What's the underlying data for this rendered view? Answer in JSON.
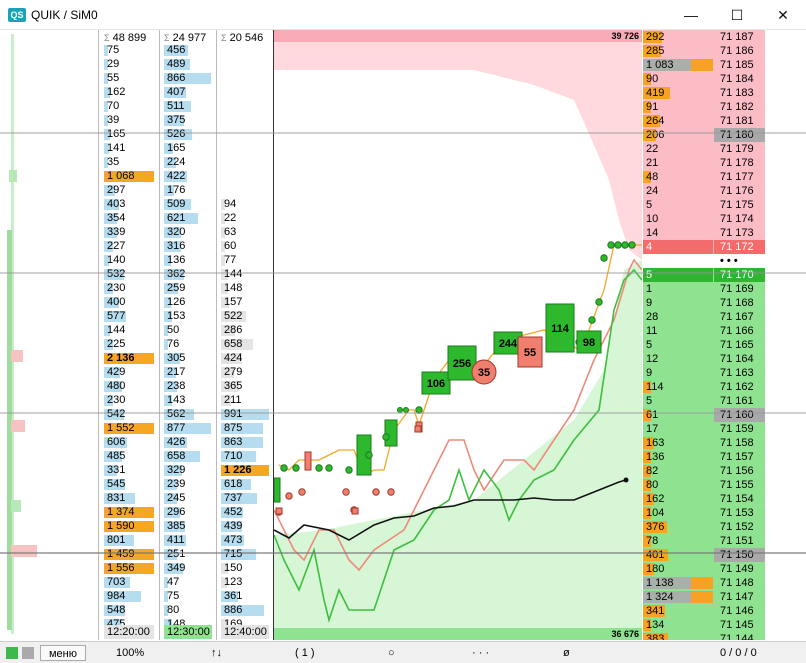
{
  "window": {
    "logo": "QS",
    "title": "QUIK / SiM0",
    "minimize_glyph": "—",
    "maximize_glyph": "☐",
    "close_glyph": "✕"
  },
  "colors": {
    "ask_bg": "#fbbcc6",
    "bid_bg": "#8fe28f",
    "ask_vol": "#f7a222",
    "bid_vol": "#f7a222",
    "big_vol": "#a9b0a9",
    "buy": "#2db82d",
    "sell": "#f07f6f",
    "lightblue": "#b6dcef",
    "orange": "#f5a623",
    "gray_cell": "#e4e4e4"
  },
  "columns": [
    {
      "name": "trades-column-1",
      "header": "48 899",
      "time": "12:20:00",
      "footer_bg": "#e4e4e4",
      "cells": [
        {
          "v": "75",
          "w": 0.03,
          "c": "#b6dcef"
        },
        {
          "v": "29",
          "w": 0.02,
          "c": "#b6dcef"
        },
        {
          "v": "55",
          "w": 0.04,
          "c": "#b6dcef"
        },
        {
          "v": "162",
          "w": 0.12,
          "c": "#b6dcef"
        },
        {
          "v": "70",
          "w": 0.05,
          "c": "#b6dcef"
        },
        {
          "v": "39",
          "w": 0.03,
          "c": "#b6dcef"
        },
        {
          "v": "165",
          "w": 0.12,
          "c": "#b6dcef"
        },
        {
          "v": "141",
          "w": 0.1,
          "c": "#b6dcef"
        },
        {
          "v": "35",
          "w": 0.03,
          "c": "#b6dcef"
        },
        {
          "v": "1 068",
          "w": 1.0,
          "c": "#b6dcef",
          "bold": false,
          "orange": true
        },
        {
          "v": "297",
          "w": 0.22,
          "c": "#b6dcef"
        },
        {
          "v": "403",
          "w": 0.3,
          "c": "#b6dcef"
        },
        {
          "v": "354",
          "w": 0.26,
          "c": "#b6dcef"
        },
        {
          "v": "339",
          "w": 0.25,
          "c": "#b6dcef"
        },
        {
          "v": "227",
          "w": 0.17,
          "c": "#b6dcef"
        },
        {
          "v": "140",
          "w": 0.1,
          "c": "#b6dcef"
        },
        {
          "v": "532",
          "w": 0.4,
          "c": "#b6dcef"
        },
        {
          "v": "230",
          "w": 0.17,
          "c": "#b6dcef"
        },
        {
          "v": "400",
          "w": 0.3,
          "c": "#b6dcef"
        },
        {
          "v": "577",
          "w": 0.43,
          "c": "#b6dcef"
        },
        {
          "v": "144",
          "w": 0.11,
          "c": "#b6dcef"
        },
        {
          "v": "225",
          "w": 0.17,
          "c": "#b6dcef"
        },
        {
          "v": "2 136",
          "w": 1.0,
          "c": "#f5a623",
          "bold": true
        },
        {
          "v": "429",
          "w": 0.32,
          "c": "#b6dcef"
        },
        {
          "v": "480",
          "w": 0.36,
          "c": "#b6dcef"
        },
        {
          "v": "230",
          "w": 0.17,
          "c": "#b6dcef"
        },
        {
          "v": "542",
          "w": 0.4,
          "c": "#b6dcef"
        },
        {
          "v": "1 552",
          "w": 1.0,
          "c": "#f5a623"
        },
        {
          "v": "606",
          "w": 0.45,
          "c": "#b6dcef"
        },
        {
          "v": "485",
          "w": 0.36,
          "c": "#b6dcef"
        },
        {
          "v": "331",
          "w": 0.25,
          "c": "#b6dcef"
        },
        {
          "v": "545",
          "w": 0.41,
          "c": "#b6dcef"
        },
        {
          "v": "831",
          "w": 0.62,
          "c": "#b6dcef"
        },
        {
          "v": "1 374",
          "w": 1.0,
          "c": "#f5a623"
        },
        {
          "v": "1 590",
          "w": 1.0,
          "c": "#f5a623"
        },
        {
          "v": "801",
          "w": 0.6,
          "c": "#b6dcef"
        },
        {
          "v": "1 459",
          "w": 1.0,
          "c": "#f5a623"
        },
        {
          "v": "1 556",
          "w": 1.0,
          "c": "#f5a623"
        },
        {
          "v": "703",
          "w": 0.52,
          "c": "#b6dcef"
        },
        {
          "v": "984",
          "w": 0.73,
          "c": "#b6dcef"
        },
        {
          "v": "548",
          "w": 0.41,
          "c": "#b6dcef"
        },
        {
          "v": "475",
          "w": 0.35,
          "c": "#b6dcef"
        }
      ]
    },
    {
      "name": "trades-column-2",
      "header": "24 977",
      "time": "12:30:00",
      "footer_bg": "#8fe28f",
      "cells": [
        {
          "v": "456",
          "w": 0.5,
          "c": "#b6dcef"
        },
        {
          "v": "489",
          "w": 0.55,
          "c": "#b6dcef"
        },
        {
          "v": "866",
          "w": 0.97,
          "c": "#b6dcef"
        },
        {
          "v": "407",
          "w": 0.46,
          "c": "#b6dcef"
        },
        {
          "v": "511",
          "w": 0.57,
          "c": "#b6dcef"
        },
        {
          "v": "375",
          "w": 0.42,
          "c": "#b6dcef"
        },
        {
          "v": "526",
          "w": 0.59,
          "c": "#b6dcef"
        },
        {
          "v": "165",
          "w": 0.18,
          "c": "#b6dcef"
        },
        {
          "v": "224",
          "w": 0.25,
          "c": "#b6dcef"
        },
        {
          "v": "422",
          "w": 0.47,
          "c": "#b6dcef"
        },
        {
          "v": "176",
          "w": 0.2,
          "c": "#b6dcef"
        },
        {
          "v": "509",
          "w": 0.57,
          "c": "#b6dcef"
        },
        {
          "v": "621",
          "w": 0.7,
          "c": "#b6dcef"
        },
        {
          "v": "320",
          "w": 0.36,
          "c": "#b6dcef"
        },
        {
          "v": "316",
          "w": 0.35,
          "c": "#b6dcef"
        },
        {
          "v": "136",
          "w": 0.15,
          "c": "#b6dcef"
        },
        {
          "v": "362",
          "w": 0.41,
          "c": "#b6dcef"
        },
        {
          "v": "259",
          "w": 0.29,
          "c": "#b6dcef"
        },
        {
          "v": "126",
          "w": 0.14,
          "c": "#b6dcef"
        },
        {
          "v": "153",
          "w": 0.17,
          "c": "#b6dcef"
        },
        {
          "v": "50",
          "w": 0.06,
          "c": "#b6dcef"
        },
        {
          "v": "76",
          "w": 0.08,
          "c": "#b6dcef"
        },
        {
          "v": "305",
          "w": 0.34,
          "c": "#b6dcef"
        },
        {
          "v": "217",
          "w": 0.24,
          "c": "#b6dcef"
        },
        {
          "v": "238",
          "w": 0.27,
          "c": "#b6dcef"
        },
        {
          "v": "143",
          "w": 0.16,
          "c": "#b6dcef"
        },
        {
          "v": "562",
          "w": 0.63,
          "c": "#b6dcef"
        },
        {
          "v": "877",
          "w": 0.98,
          "c": "#b6dcef"
        },
        {
          "v": "426",
          "w": 0.48,
          "c": "#b6dcef"
        },
        {
          "v": "658",
          "w": 0.74,
          "c": "#b6dcef"
        },
        {
          "v": "329",
          "w": 0.37,
          "c": "#b6dcef"
        },
        {
          "v": "239",
          "w": 0.27,
          "c": "#b6dcef"
        },
        {
          "v": "245",
          "w": 0.27,
          "c": "#b6dcef"
        },
        {
          "v": "296",
          "w": 0.33,
          "c": "#b6dcef"
        },
        {
          "v": "385",
          "w": 0.43,
          "c": "#b6dcef"
        },
        {
          "v": "411",
          "w": 0.46,
          "c": "#b6dcef"
        },
        {
          "v": "251",
          "w": 0.28,
          "c": "#b6dcef"
        },
        {
          "v": "349",
          "w": 0.39,
          "c": "#b6dcef"
        },
        {
          "v": "47",
          "w": 0.05,
          "c": "#b6dcef"
        },
        {
          "v": "75",
          "w": 0.08,
          "c": "#b6dcef"
        },
        {
          "v": "80",
          "w": 0.09,
          "c": "#b6dcef"
        },
        {
          "v": "148",
          "w": 0.17,
          "c": "#b6dcef"
        }
      ]
    },
    {
      "name": "trades-column-3",
      "header": "20 546",
      "time": "12:40:00",
      "footer_bg": "#e4e4e4",
      "cells": [
        {
          "v": "",
          "w": 0
        },
        {
          "v": "",
          "w": 0
        },
        {
          "v": "",
          "w": 0
        },
        {
          "v": "",
          "w": 0
        },
        {
          "v": "",
          "w": 0
        },
        {
          "v": "",
          "w": 0
        },
        {
          "v": "",
          "w": 0
        },
        {
          "v": "",
          "w": 0
        },
        {
          "v": "",
          "w": 0
        },
        {
          "v": "",
          "w": 0
        },
        {
          "v": "",
          "w": 0
        },
        {
          "v": "94",
          "w": 0.09,
          "c": "#e4e4e4"
        },
        {
          "v": "22",
          "w": 0.02,
          "c": "#e4e4e4"
        },
        {
          "v": "63",
          "w": 0.06,
          "c": "#e4e4e4"
        },
        {
          "v": "60",
          "w": 0.06,
          "c": "#e4e4e4"
        },
        {
          "v": "77",
          "w": 0.08,
          "c": "#e4e4e4"
        },
        {
          "v": "144",
          "w": 0.15,
          "c": "#e4e4e4"
        },
        {
          "v": "148",
          "w": 0.15,
          "c": "#e4e4e4"
        },
        {
          "v": "157",
          "w": 0.16,
          "c": "#e4e4e4"
        },
        {
          "v": "522",
          "w": 0.53,
          "c": "#e4e4e4"
        },
        {
          "v": "286",
          "w": 0.29,
          "c": "#e4e4e4"
        },
        {
          "v": "658",
          "w": 0.66,
          "c": "#e4e4e4"
        },
        {
          "v": "424",
          "w": 0.43,
          "c": "#e4e4e4"
        },
        {
          "v": "279",
          "w": 0.28,
          "c": "#e4e4e4"
        },
        {
          "v": "365",
          "w": 0.37,
          "c": "#e4e4e4"
        },
        {
          "v": "211",
          "w": 0.21,
          "c": "#e4e4e4"
        },
        {
          "v": "991",
          "w": 1.0,
          "c": "#b6dcef"
        },
        {
          "v": "875",
          "w": 0.88,
          "c": "#b6dcef"
        },
        {
          "v": "863",
          "w": 0.87,
          "c": "#b6dcef"
        },
        {
          "v": "710",
          "w": 0.72,
          "c": "#b6dcef"
        },
        {
          "v": "1 226",
          "w": 1.0,
          "c": "#f5a623",
          "bold": true
        },
        {
          "v": "618",
          "w": 0.62,
          "c": "#b6dcef"
        },
        {
          "v": "737",
          "w": 0.74,
          "c": "#b6dcef"
        },
        {
          "v": "452",
          "w": 0.46,
          "c": "#b6dcef"
        },
        {
          "v": "439",
          "w": 0.44,
          "c": "#b6dcef"
        },
        {
          "v": "473",
          "w": 0.48,
          "c": "#b6dcef"
        },
        {
          "v": "715",
          "w": 0.72,
          "c": "#b6dcef"
        },
        {
          "v": "150",
          "w": 0.15,
          "c": "#e4e4e4"
        },
        {
          "v": "123",
          "w": 0.12,
          "c": "#e4e4e4"
        },
        {
          "v": "361",
          "w": 0.36,
          "c": "#b6dcef"
        },
        {
          "v": "886",
          "w": 0.89,
          "c": "#b6dcef"
        },
        {
          "v": "169",
          "w": 0.17,
          "c": "#e4e4e4"
        }
      ]
    }
  ],
  "chart": {
    "top_label": "39 726",
    "bottom_label": "36 676",
    "boxes": [
      {
        "label": "106",
        "type": "buy"
      },
      {
        "label": "256",
        "type": "buy"
      },
      {
        "label": "35",
        "type": "sell_circle"
      },
      {
        "label": "244",
        "type": "buy"
      },
      {
        "label": "55",
        "type": "sell"
      },
      {
        "label": "114",
        "type": "buy"
      },
      {
        "label": "98",
        "type": "buy"
      }
    ]
  },
  "orderbook": {
    "asks": [
      {
        "vol": "292",
        "price": "71 187",
        "w": 0.27
      },
      {
        "vol": "285",
        "price": "71 186",
        "w": 0.26
      },
      {
        "vol": "1 083",
        "price": "71 185",
        "w": 1.0,
        "big": true
      },
      {
        "vol": "90",
        "price": "71 184",
        "w": 0.08
      },
      {
        "vol": "419",
        "price": "71 183",
        "w": 0.39
      },
      {
        "vol": "91",
        "price": "71 182",
        "w": 0.08
      },
      {
        "vol": "264",
        "price": "71 181",
        "w": 0.24
      },
      {
        "vol": "206",
        "price": "71 180",
        "w": 0.19,
        "grayprice": true
      },
      {
        "vol": "22",
        "price": "71 179",
        "w": 0.0
      },
      {
        "vol": "21",
        "price": "71 178",
        "w": 0.0
      },
      {
        "vol": "48",
        "price": "71 177",
        "w": 0.04
      },
      {
        "vol": "24",
        "price": "71 176",
        "w": 0.0
      },
      {
        "vol": "5",
        "price": "71 175",
        "w": 0.0
      },
      {
        "vol": "10",
        "price": "71 174",
        "w": 0.0
      },
      {
        "vol": "14",
        "price": "71 173",
        "w": 0.0
      },
      {
        "vol": "4",
        "price": "71 172",
        "w": 0.0,
        "best": true
      }
    ],
    "spread": "• • •",
    "bids": [
      {
        "vol": "5",
        "price": "71 170",
        "w": 0.0,
        "best": true
      },
      {
        "vol": "1",
        "price": "71 169",
        "w": 0.0
      },
      {
        "vol": "9",
        "price": "71 168",
        "w": 0.0
      },
      {
        "vol": "28",
        "price": "71 167",
        "w": 0.0
      },
      {
        "vol": "11",
        "price": "71 166",
        "w": 0.0
      },
      {
        "vol": "5",
        "price": "71 165",
        "w": 0.0
      },
      {
        "vol": "12",
        "price": "71 164",
        "w": 0.0
      },
      {
        "vol": "9",
        "price": "71 163",
        "w": 0.0
      },
      {
        "vol": "114",
        "price": "71 162",
        "w": 0.1
      },
      {
        "vol": "5",
        "price": "71 161",
        "w": 0.0
      },
      {
        "vol": "61",
        "price": "71 160",
        "w": 0.06,
        "grayprice": true
      },
      {
        "vol": "17",
        "price": "71 159",
        "w": 0.0
      },
      {
        "vol": "163",
        "price": "71 158",
        "w": 0.15
      },
      {
        "vol": "136",
        "price": "71 157",
        "w": 0.12
      },
      {
        "vol": "82",
        "price": "71 156",
        "w": 0.07
      },
      {
        "vol": "80",
        "price": "71 155",
        "w": 0.07
      },
      {
        "vol": "162",
        "price": "71 154",
        "w": 0.15
      },
      {
        "vol": "104",
        "price": "71 153",
        "w": 0.09
      },
      {
        "vol": "376",
        "price": "71 152",
        "w": 0.34
      },
      {
        "vol": "78",
        "price": "71 151",
        "w": 0.07
      },
      {
        "vol": "401",
        "price": "71 150",
        "w": 0.36,
        "grayprice": true
      },
      {
        "vol": "180",
        "price": "71 149",
        "w": 0.16
      },
      {
        "vol": "1 138",
        "price": "71 148",
        "w": 1.0,
        "big": true
      },
      {
        "vol": "1 324",
        "price": "71 147",
        "w": 1.0,
        "big": true
      },
      {
        "vol": "341",
        "price": "71 146",
        "w": 0.31
      },
      {
        "vol": "134",
        "price": "71 145",
        "w": 0.12
      },
      {
        "vol": "383",
        "price": "71 144",
        "w": 0.35
      }
    ]
  },
  "statusbar": {
    "menu": "меню",
    "zoom": "100%",
    "sort_glyph": "↑↓",
    "count": "( 1 )",
    "circle": "○",
    "dots": "· · ·",
    "null_glyph": "ø",
    "counters": "0 / 0 / 0"
  }
}
